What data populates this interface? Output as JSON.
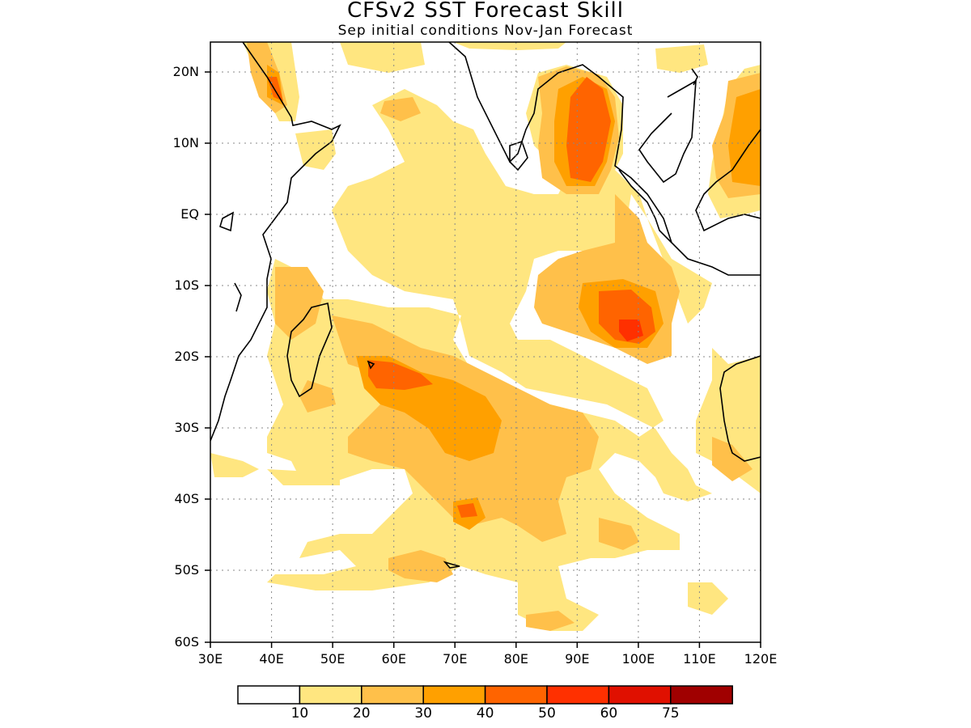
{
  "title": "CFSv2 SST Forecast Skill",
  "subtitle": "Sep initial conditions  Nov-Jan Forecast",
  "lat_labels": [
    "20N",
    "10N",
    "EQ",
    "10S",
    "20S",
    "30S",
    "40S",
    "50S",
    "60S"
  ],
  "lon_labels": [
    "30E",
    "40E",
    "50E",
    "60E",
    "70E",
    "80E",
    "90E",
    "100E",
    "110E",
    "120E"
  ],
  "colorbar": {
    "colors": [
      "#ffffff",
      "#ffe680",
      "#ffc04a",
      "#ffa000",
      "#ff6400",
      "#ff3000",
      "#e01000",
      "#a00000"
    ],
    "labels": [
      "10",
      "20",
      "30",
      "40",
      "50",
      "60",
      "75"
    ]
  },
  "map_extent": {
    "lon_min": 30,
    "lon_max": 120,
    "lat_min": -60,
    "lat_max": 24
  },
  "grid": "dotted"
}
